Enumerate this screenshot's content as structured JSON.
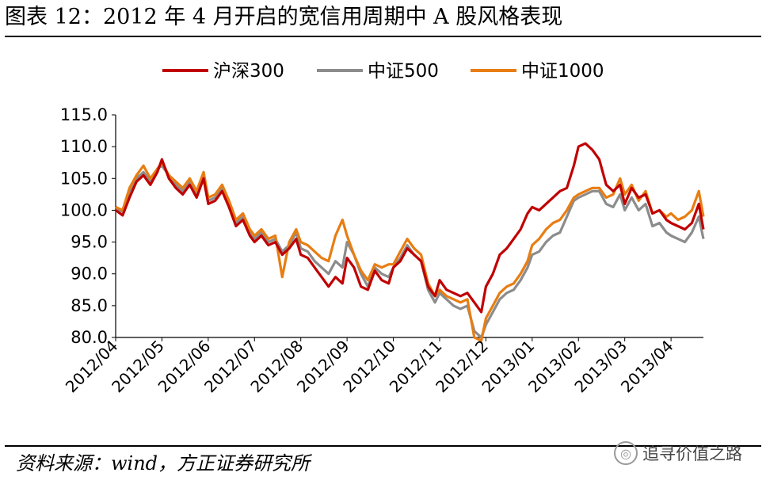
{
  "header": {
    "title": "图表 12：2012 年 4 月开启的宽信用周期中 A 股风格表现"
  },
  "footer": {
    "source": "资料来源：wind，方正证券研究所",
    "watermark": "追寻价值之路"
  },
  "chart_data": {
    "type": "line",
    "title": "",
    "xlabel": "",
    "ylabel": "",
    "ylim": [
      80,
      115
    ],
    "y_ticks": [
      "80.0",
      "85.0",
      "90.0",
      "95.0",
      "100.0",
      "105.0",
      "110.0",
      "115.0"
    ],
    "x_ticks": [
      "2012/04",
      "2012/05",
      "2012/06",
      "2012/07",
      "2012/08",
      "2012/09",
      "2012/10",
      "2012/11",
      "2012/12",
      "2013/01",
      "2013/02",
      "2013/03",
      "2013/04"
    ],
    "xlim": [
      0,
      12.7
    ],
    "legend_position": "top",
    "series": [
      {
        "name": "沪深300",
        "color": "#c00000",
        "x": [
          0,
          0.15,
          0.3,
          0.45,
          0.6,
          0.75,
          0.9,
          1.0,
          1.15,
          1.3,
          1.45,
          1.6,
          1.75,
          1.9,
          2.0,
          2.15,
          2.3,
          2.45,
          2.6,
          2.75,
          2.9,
          3.0,
          3.15,
          3.3,
          3.45,
          3.6,
          3.75,
          3.9,
          4.0,
          4.15,
          4.3,
          4.45,
          4.6,
          4.75,
          4.9,
          5.0,
          5.15,
          5.3,
          5.45,
          5.6,
          5.75,
          5.9,
          6.0,
          6.15,
          6.3,
          6.45,
          6.6,
          6.75,
          6.9,
          7.0,
          7.15,
          7.3,
          7.45,
          7.6,
          7.75,
          7.9,
          8.0,
          8.15,
          8.3,
          8.45,
          8.6,
          8.75,
          8.9,
          9.0,
          9.15,
          9.3,
          9.45,
          9.6,
          9.75,
          9.9,
          10.0,
          10.15,
          10.3,
          10.45,
          10.6,
          10.75,
          10.9,
          11.0,
          11.15,
          11.3,
          11.45,
          11.6,
          11.75,
          11.9,
          12.0,
          12.15,
          12.3,
          12.45,
          12.6,
          12.7
        ],
        "values": [
          100.0,
          99.2,
          102.0,
          104.5,
          105.5,
          104.0,
          106.0,
          108.0,
          105.0,
          103.5,
          102.5,
          104.0,
          102.0,
          105.0,
          101.0,
          101.5,
          103.0,
          100.5,
          97.5,
          98.5,
          96.0,
          95.0,
          96.0,
          94.5,
          95.0,
          93.0,
          94.0,
          95.5,
          93.0,
          92.5,
          91.0,
          89.5,
          88.0,
          89.5,
          88.5,
          92.5,
          91.0,
          88.0,
          87.5,
          90.5,
          89.0,
          88.5,
          91.0,
          92.0,
          94.0,
          93.0,
          92.0,
          88.0,
          86.5,
          89.0,
          87.5,
          87.0,
          86.5,
          87.0,
          85.5,
          84.0,
          88.0,
          90.0,
          93.0,
          94.0,
          95.5,
          97.0,
          99.5,
          100.5,
          100.0,
          101.0,
          102.0,
          103.0,
          103.5,
          107.0,
          110.0,
          110.5,
          109.5,
          108.0,
          104.0,
          103.0,
          104.0,
          101.0,
          103.5,
          102.0,
          102.5,
          99.5,
          100.0,
          98.5,
          98.0,
          97.5,
          97.0,
          98.0,
          101.0,
          97.0
        ]
      },
      {
        "name": "中证500",
        "color": "#8c8c8c",
        "x": [
          0,
          0.15,
          0.3,
          0.45,
          0.6,
          0.75,
          0.9,
          1.0,
          1.15,
          1.3,
          1.45,
          1.6,
          1.75,
          1.9,
          2.0,
          2.15,
          2.3,
          2.45,
          2.6,
          2.75,
          2.9,
          3.0,
          3.15,
          3.3,
          3.45,
          3.6,
          3.75,
          3.9,
          4.0,
          4.15,
          4.3,
          4.45,
          4.6,
          4.75,
          4.9,
          5.0,
          5.15,
          5.3,
          5.45,
          5.6,
          5.75,
          5.9,
          6.0,
          6.15,
          6.3,
          6.45,
          6.6,
          6.75,
          6.9,
          7.0,
          7.15,
          7.3,
          7.45,
          7.6,
          7.75,
          7.9,
          8.0,
          8.15,
          8.3,
          8.45,
          8.6,
          8.75,
          8.9,
          9.0,
          9.15,
          9.3,
          9.45,
          9.6,
          9.75,
          9.9,
          10.0,
          10.15,
          10.3,
          10.45,
          10.6,
          10.75,
          10.9,
          11.0,
          11.15,
          11.3,
          11.45,
          11.6,
          11.75,
          11.9,
          12.0,
          12.15,
          12.3,
          12.45,
          12.6,
          12.7
        ],
        "values": [
          100.0,
          99.8,
          103.0,
          105.0,
          106.0,
          104.5,
          106.5,
          107.0,
          105.5,
          104.0,
          103.0,
          104.5,
          102.5,
          105.0,
          101.5,
          102.0,
          103.5,
          101.0,
          98.0,
          99.0,
          96.5,
          95.5,
          96.5,
          95.0,
          95.5,
          93.5,
          94.5,
          96.5,
          94.0,
          93.5,
          92.0,
          91.0,
          90.0,
          92.0,
          91.0,
          95.0,
          93.0,
          90.0,
          88.0,
          91.0,
          90.0,
          89.5,
          91.0,
          92.5,
          94.5,
          93.0,
          92.0,
          87.5,
          85.5,
          87.0,
          86.0,
          85.0,
          84.5,
          85.0,
          81.0,
          80.0,
          82.0,
          84.0,
          86.0,
          87.0,
          87.5,
          89.0,
          91.0,
          93.0,
          93.5,
          95.0,
          96.0,
          96.5,
          99.0,
          101.5,
          102.0,
          102.5,
          103.0,
          103.0,
          101.0,
          100.5,
          102.5,
          100.0,
          102.0,
          100.0,
          101.0,
          97.5,
          98.0,
          96.5,
          96.0,
          95.5,
          95.0,
          96.5,
          99.0,
          95.5
        ]
      },
      {
        "name": "中证1000",
        "color": "#e87d12",
        "x": [
          0,
          0.15,
          0.3,
          0.45,
          0.6,
          0.75,
          0.9,
          1.0,
          1.15,
          1.3,
          1.45,
          1.6,
          1.75,
          1.9,
          2.0,
          2.15,
          2.3,
          2.45,
          2.6,
          2.75,
          2.9,
          3.0,
          3.15,
          3.3,
          3.45,
          3.6,
          3.75,
          3.9,
          4.0,
          4.15,
          4.3,
          4.45,
          4.6,
          4.75,
          4.9,
          5.0,
          5.15,
          5.3,
          5.45,
          5.6,
          5.75,
          5.9,
          6.0,
          6.15,
          6.3,
          6.45,
          6.6,
          6.75,
          6.9,
          7.0,
          7.15,
          7.3,
          7.45,
          7.6,
          7.75,
          7.9,
          8.0,
          8.15,
          8.3,
          8.45,
          8.6,
          8.75,
          8.9,
          9.0,
          9.15,
          9.3,
          9.45,
          9.6,
          9.75,
          9.9,
          10.0,
          10.15,
          10.3,
          10.45,
          10.6,
          10.75,
          10.9,
          11.0,
          11.15,
          11.3,
          11.45,
          11.6,
          11.75,
          11.9,
          12.0,
          12.15,
          12.3,
          12.45,
          12.6,
          12.7
        ],
        "values": [
          100.5,
          100.0,
          103.5,
          105.5,
          107.0,
          105.0,
          106.5,
          107.5,
          105.5,
          104.5,
          103.5,
          105.0,
          103.0,
          106.0,
          102.0,
          102.5,
          104.0,
          101.5,
          98.5,
          99.5,
          97.0,
          96.0,
          97.0,
          95.5,
          96.0,
          89.5,
          95.0,
          97.0,
          95.0,
          94.5,
          93.5,
          92.5,
          92.0,
          96.0,
          98.5,
          96.0,
          93.0,
          90.5,
          89.0,
          91.5,
          91.0,
          91.5,
          91.5,
          93.5,
          95.5,
          94.0,
          93.0,
          88.5,
          86.5,
          87.5,
          86.5,
          86.0,
          85.5,
          86.0,
          80.0,
          79.5,
          83.0,
          85.0,
          87.0,
          88.0,
          88.5,
          90.0,
          92.0,
          94.5,
          95.5,
          97.0,
          98.0,
          98.5,
          100.0,
          102.0,
          102.5,
          103.0,
          103.5,
          103.5,
          102.0,
          102.5,
          105.0,
          102.5,
          104.0,
          101.5,
          103.0,
          99.5,
          100.0,
          99.0,
          99.5,
          98.5,
          99.0,
          100.0,
          103.0,
          99.0
        ]
      }
    ]
  }
}
